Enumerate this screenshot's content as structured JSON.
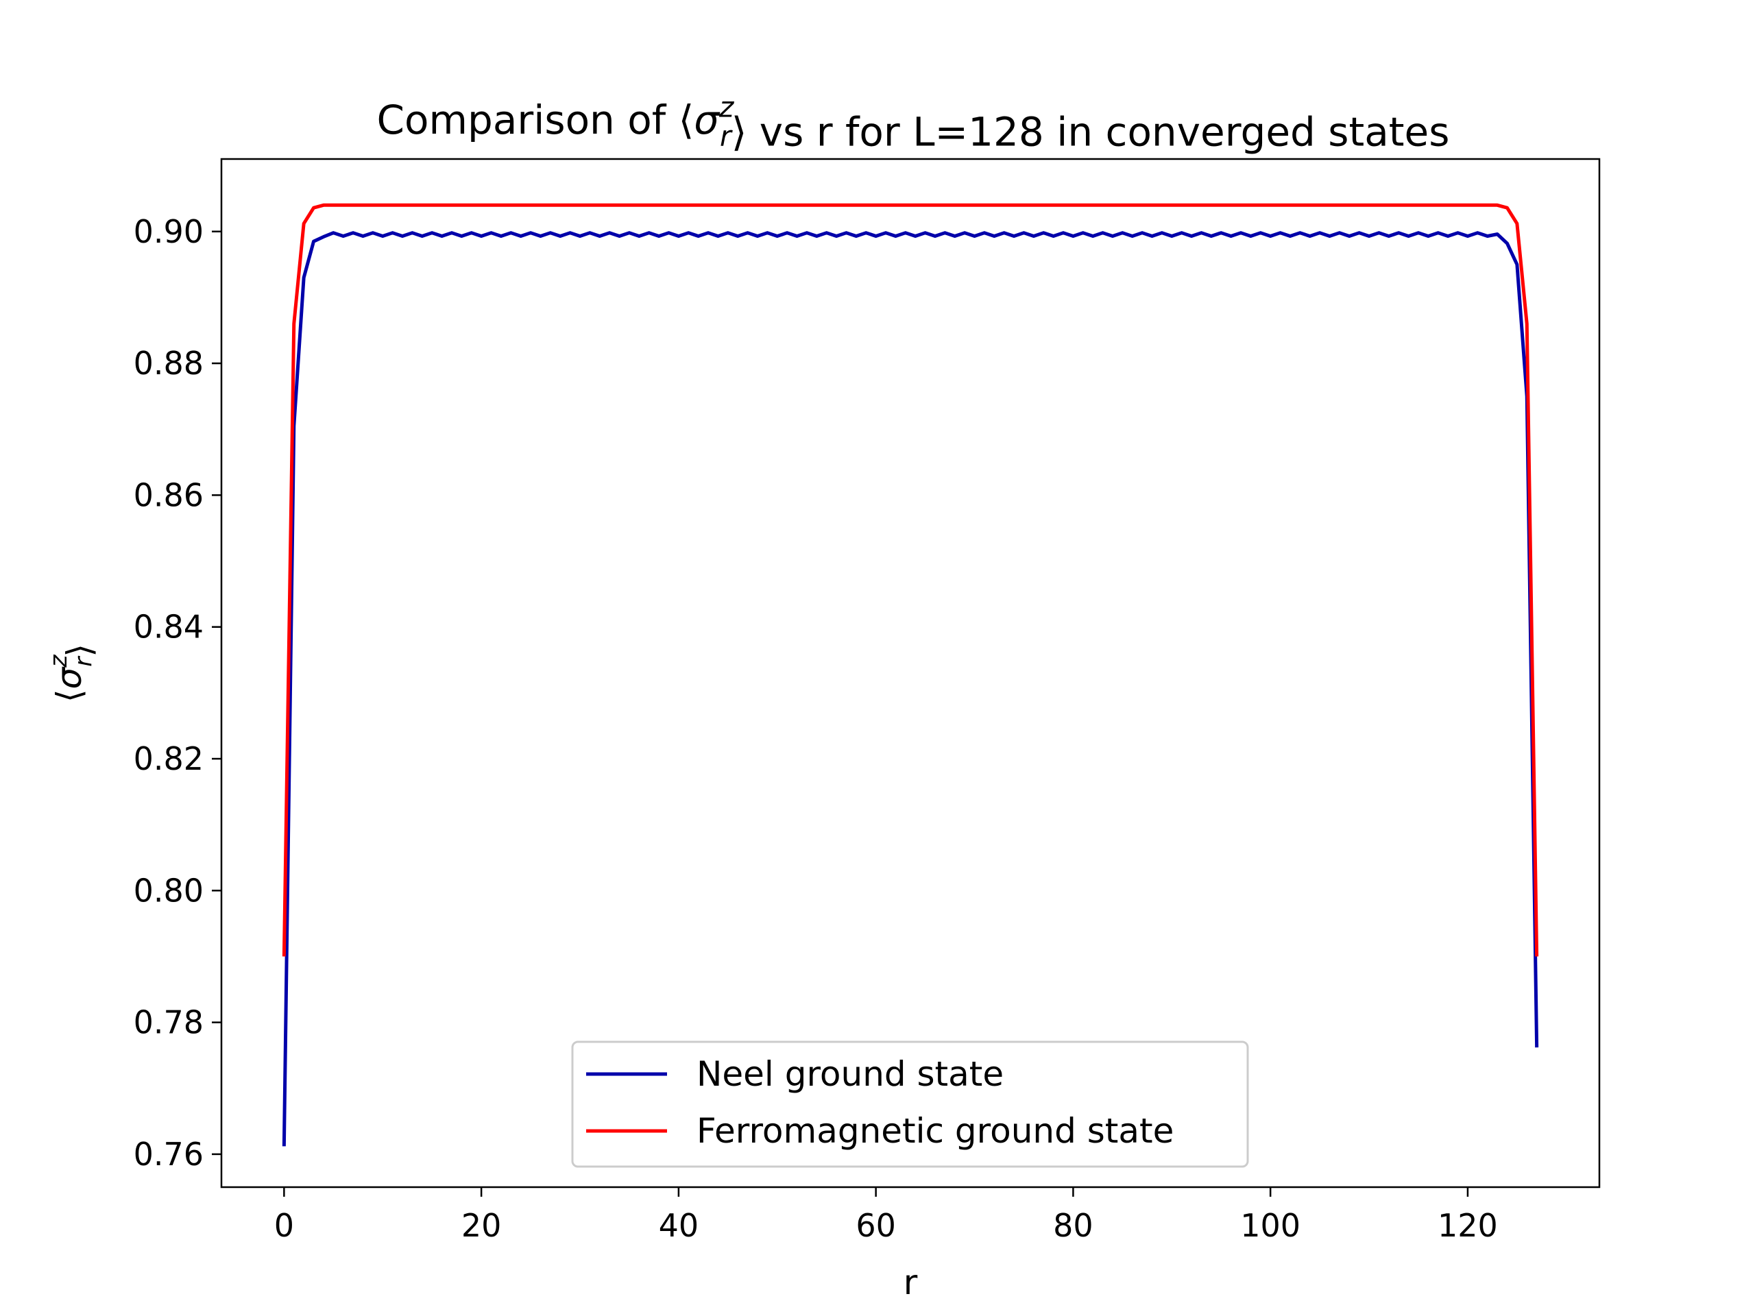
{
  "chart_data": {
    "type": "line",
    "title": "Comparison of ⟨σ_r^z⟩ vs r for L=128 in converged states",
    "xlabel": "r",
    "ylabel": "⟨σ_r^z⟩",
    "xlim": [
      -6.35,
      133.35
    ],
    "ylim": [
      0.755,
      0.911
    ],
    "xticks": [
      0,
      20,
      40,
      60,
      80,
      100,
      120
    ],
    "yticks": [
      0.76,
      0.78,
      0.8,
      0.82,
      0.84,
      0.86,
      0.88,
      0.9
    ],
    "ytick_labels": [
      "0.76",
      "0.78",
      "0.80",
      "0.82",
      "0.84",
      "0.86",
      "0.88",
      "0.90"
    ],
    "legend_position": "lower-center",
    "grid": false,
    "series": [
      {
        "name": "Neel ground state",
        "color": "#0000aa",
        "x_range": [
          0,
          127
        ],
        "edge_values": [
          0.7612,
          0.8705,
          0.893,
          0.8985,
          0.8992
        ],
        "bulk_values": [
          0.8998,
          0.8993
        ],
        "right_edge_values": [
          0.8996,
          0.8982,
          0.895,
          0.875,
          0.7762
        ]
      },
      {
        "name": "Ferromagnetic ground state",
        "color": "#ff0000",
        "x_range": [
          0,
          127
        ],
        "edge_values": [
          0.79,
          0.886,
          0.9012,
          0.9036,
          0.904
        ],
        "bulk_value": 0.904,
        "right_edge_values": [
          0.904,
          0.9036,
          0.9012,
          0.886,
          0.79
        ]
      }
    ]
  }
}
